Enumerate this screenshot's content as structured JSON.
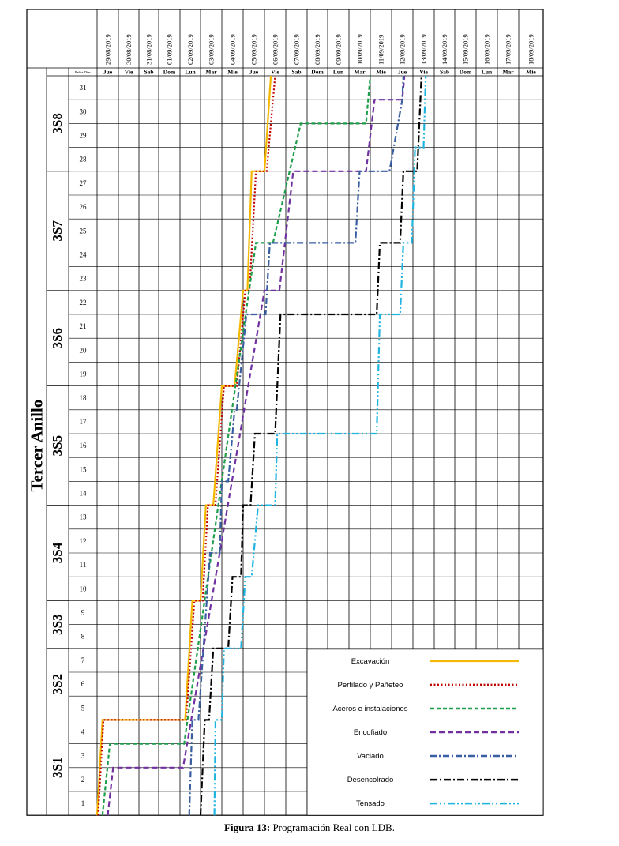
{
  "chart_data": {
    "type": "line",
    "ring_label": "Tercer Anillo",
    "corner_label": "Paños/Días",
    "dates": [
      "29/08/2019",
      "30/08/2019",
      "31/08/2019",
      "01/09/2019",
      "02/09/2019",
      "03/09/2019",
      "04/09/2019",
      "05/09/2019",
      "06/09/2019",
      "07/09/2019",
      "08/09/2019",
      "09/09/2019",
      "10/09/2019",
      "11/09/2019",
      "12/09/2019",
      "13/09/2019",
      "14/09/2019",
      "15/09/2019",
      "16/09/2019",
      "17/09/2019",
      "18/09/2019"
    ],
    "days": [
      "Jue",
      "Vie",
      "Sab",
      "Dom",
      "Lun",
      "Mar",
      "Mie",
      "Jue",
      "Vie",
      "Sab",
      "Dom",
      "Lun",
      "Mar",
      "Mie",
      "Jue",
      "Vie",
      "Sab",
      "Dom",
      "Lun",
      "Mar",
      "Mie"
    ],
    "panels": [
      1,
      2,
      3,
      4,
      5,
      6,
      7,
      8,
      9,
      10,
      11,
      12,
      13,
      14,
      15,
      16,
      17,
      18,
      19,
      20,
      21,
      22,
      23,
      24,
      25,
      26,
      27,
      28,
      29,
      30,
      31
    ],
    "sections": [
      {
        "label": "3S1",
        "from": 1,
        "to": 4
      },
      {
        "label": "3S2",
        "from": 5,
        "to": 7
      },
      {
        "label": "3S3",
        "from": 8,
        "to": 9
      },
      {
        "label": "3S4",
        "from": 10,
        "to": 13
      },
      {
        "label": "3S5",
        "from": 14,
        "to": 18
      },
      {
        "label": "3S6",
        "from": 19,
        "to": 22
      },
      {
        "label": "3S7",
        "from": 23,
        "to": 27
      },
      {
        "label": "3S8",
        "from": 28,
        "to": 31
      }
    ],
    "series": [
      {
        "name": "Excavación",
        "color": "#F5B800",
        "dash": "",
        "points": [
          [
            0.0,
            0
          ],
          [
            0.25,
            4
          ],
          [
            4.25,
            4
          ],
          [
            4.6,
            9
          ],
          [
            5.0,
            9
          ],
          [
            5.25,
            13
          ],
          [
            5.6,
            13
          ],
          [
            6.0,
            18
          ],
          [
            6.6,
            18
          ],
          [
            7.0,
            22
          ],
          [
            7.2,
            22
          ],
          [
            7.4,
            27
          ],
          [
            8.0,
            27
          ],
          [
            8.3,
            31
          ]
        ]
      },
      {
        "name": "Perfilado y Pañeteo",
        "color": "#C00000",
        "dash": "2,2.5",
        "points": [
          [
            0.05,
            0
          ],
          [
            0.3,
            4
          ],
          [
            4.3,
            4
          ],
          [
            4.7,
            9
          ],
          [
            5.1,
            9
          ],
          [
            5.35,
            13
          ],
          [
            5.7,
            13
          ],
          [
            6.1,
            18
          ],
          [
            6.7,
            18
          ],
          [
            7.1,
            22
          ],
          [
            7.3,
            22
          ],
          [
            7.6,
            27
          ],
          [
            8.1,
            27
          ],
          [
            8.5,
            31
          ]
        ]
      },
      {
        "name": "Aceros e instalaciones",
        "color": "#1E9E4A",
        "dash": "5,3",
        "points": [
          [
            0.25,
            0
          ],
          [
            0.6,
            3
          ],
          [
            4.2,
            3
          ],
          [
            7.6,
            24
          ],
          [
            8.4,
            24
          ],
          [
            9.7,
            29
          ],
          [
            12.8,
            29
          ],
          [
            13.0,
            31
          ]
        ]
      },
      {
        "name": "Encofiado",
        "color": "#7030A0",
        "dash": "7,4",
        "points": [
          [
            0.5,
            0
          ],
          [
            0.75,
            2
          ],
          [
            4.15,
            2
          ],
          [
            8.0,
            22
          ],
          [
            8.7,
            22
          ],
          [
            9.35,
            27
          ],
          [
            12.8,
            27
          ],
          [
            13.2,
            30
          ],
          [
            14.5,
            30
          ],
          [
            14.6,
            31
          ]
        ]
      },
      {
        "name": "Vaciado",
        "color": "#3A5FA0",
        "dash": "8,3,2,3",
        "points": [
          [
            4.45,
            0
          ],
          [
            4.6,
            4
          ],
          [
            4.9,
            4
          ],
          [
            5.45,
            11
          ],
          [
            5.9,
            11
          ],
          [
            6.0,
            14
          ],
          [
            6.3,
            14
          ],
          [
            6.6,
            17
          ],
          [
            6.7,
            17
          ],
          [
            7.15,
            21
          ],
          [
            8.05,
            21
          ],
          [
            8.25,
            24
          ],
          [
            12.3,
            24
          ],
          [
            12.5,
            27
          ],
          [
            13.9,
            27
          ],
          [
            14.5,
            30
          ],
          [
            14.55,
            31
          ]
        ]
      },
      {
        "name": "Desencolrado",
        "color": "#000000",
        "dash": "9,3,2,3",
        "points": [
          [
            5.0,
            0
          ],
          [
            5.2,
            4
          ],
          [
            5.4,
            4
          ],
          [
            5.6,
            7
          ],
          [
            6.3,
            7
          ],
          [
            6.5,
            10
          ],
          [
            6.9,
            10
          ],
          [
            7.0,
            13
          ],
          [
            7.35,
            13
          ],
          [
            7.55,
            16
          ],
          [
            8.5,
            16
          ],
          [
            8.75,
            21
          ],
          [
            13.3,
            21
          ],
          [
            13.45,
            24
          ],
          [
            14.4,
            24
          ],
          [
            14.55,
            27
          ],
          [
            15.2,
            27
          ],
          [
            15.4,
            31
          ]
        ]
      },
      {
        "name": "Tensado",
        "color": "#20B4E0",
        "dash": "9,3,2,3,2,3",
        "points": [
          [
            5.65,
            0
          ],
          [
            5.7,
            4
          ],
          [
            6.0,
            4
          ],
          [
            6.1,
            7
          ],
          [
            6.9,
            7
          ],
          [
            7.1,
            10
          ],
          [
            7.4,
            10
          ],
          [
            7.7,
            13
          ],
          [
            8.5,
            13
          ],
          [
            8.6,
            16
          ],
          [
            13.3,
            16
          ],
          [
            13.45,
            21
          ],
          [
            14.4,
            21
          ],
          [
            14.55,
            24
          ],
          [
            14.95,
            24
          ],
          [
            15.1,
            28
          ],
          [
            15.5,
            28
          ],
          [
            15.6,
            31
          ]
        ]
      }
    ]
  },
  "legend": [
    {
      "name": "Excavación",
      "color": "#F5B800",
      "dash": ""
    },
    {
      "name": "Perfilado y Pañeteo",
      "color": "#C00000",
      "dash": "2,2.5"
    },
    {
      "name": "Aceros e instalaciones",
      "color": "#1E9E4A",
      "dash": "5,3"
    },
    {
      "name": "Encofiado",
      "color": "#7030A0",
      "dash": "7,4"
    },
    {
      "name": "Vaciado",
      "color": "#3A5FA0",
      "dash": "8,3,2,3"
    },
    {
      "name": "Desencolrado",
      "color": "#000000",
      "dash": "9,3,2,3"
    },
    {
      "name": "Tensado",
      "color": "#20B4E0",
      "dash": "9,3,2,3,2,3"
    }
  ],
  "caption": {
    "label": "Figura 13:",
    "text": " Programación Real con LDB."
  }
}
